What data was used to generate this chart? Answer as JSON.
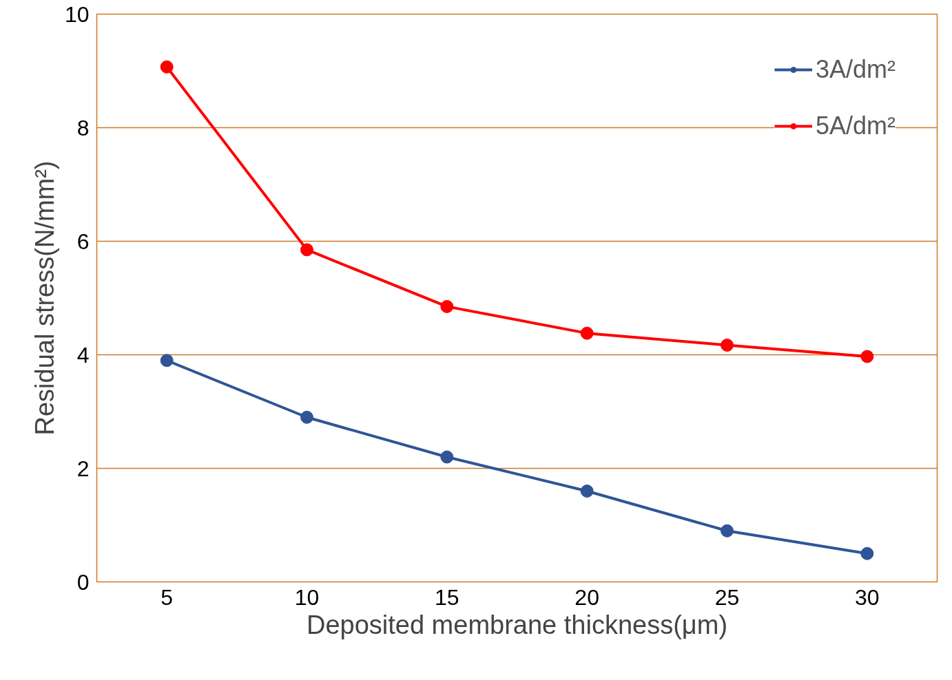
{
  "chart_data": {
    "type": "line",
    "xlabel": "Deposited membrane thickness(μm)",
    "ylabel": "Residual stress(N/mm²)",
    "categories": [
      "5",
      "10",
      "15",
      "20",
      "25",
      "30"
    ],
    "series": [
      {
        "name": "3A/dm²",
        "color": "#2f5597",
        "values": [
          3.9,
          2.9,
          2.2,
          1.6,
          0.9,
          0.5
        ]
      },
      {
        "name": "5A/dm²",
        "color": "#ff0000",
        "values": [
          9.07,
          5.85,
          4.85,
          4.38,
          4.17,
          3.97
        ]
      }
    ],
    "ylim": [
      0,
      10
    ],
    "yticks": [
      0,
      2,
      4,
      6,
      8,
      10
    ],
    "grid": "y",
    "legend": "top right",
    "marker": "circle",
    "line_style": "solid"
  }
}
